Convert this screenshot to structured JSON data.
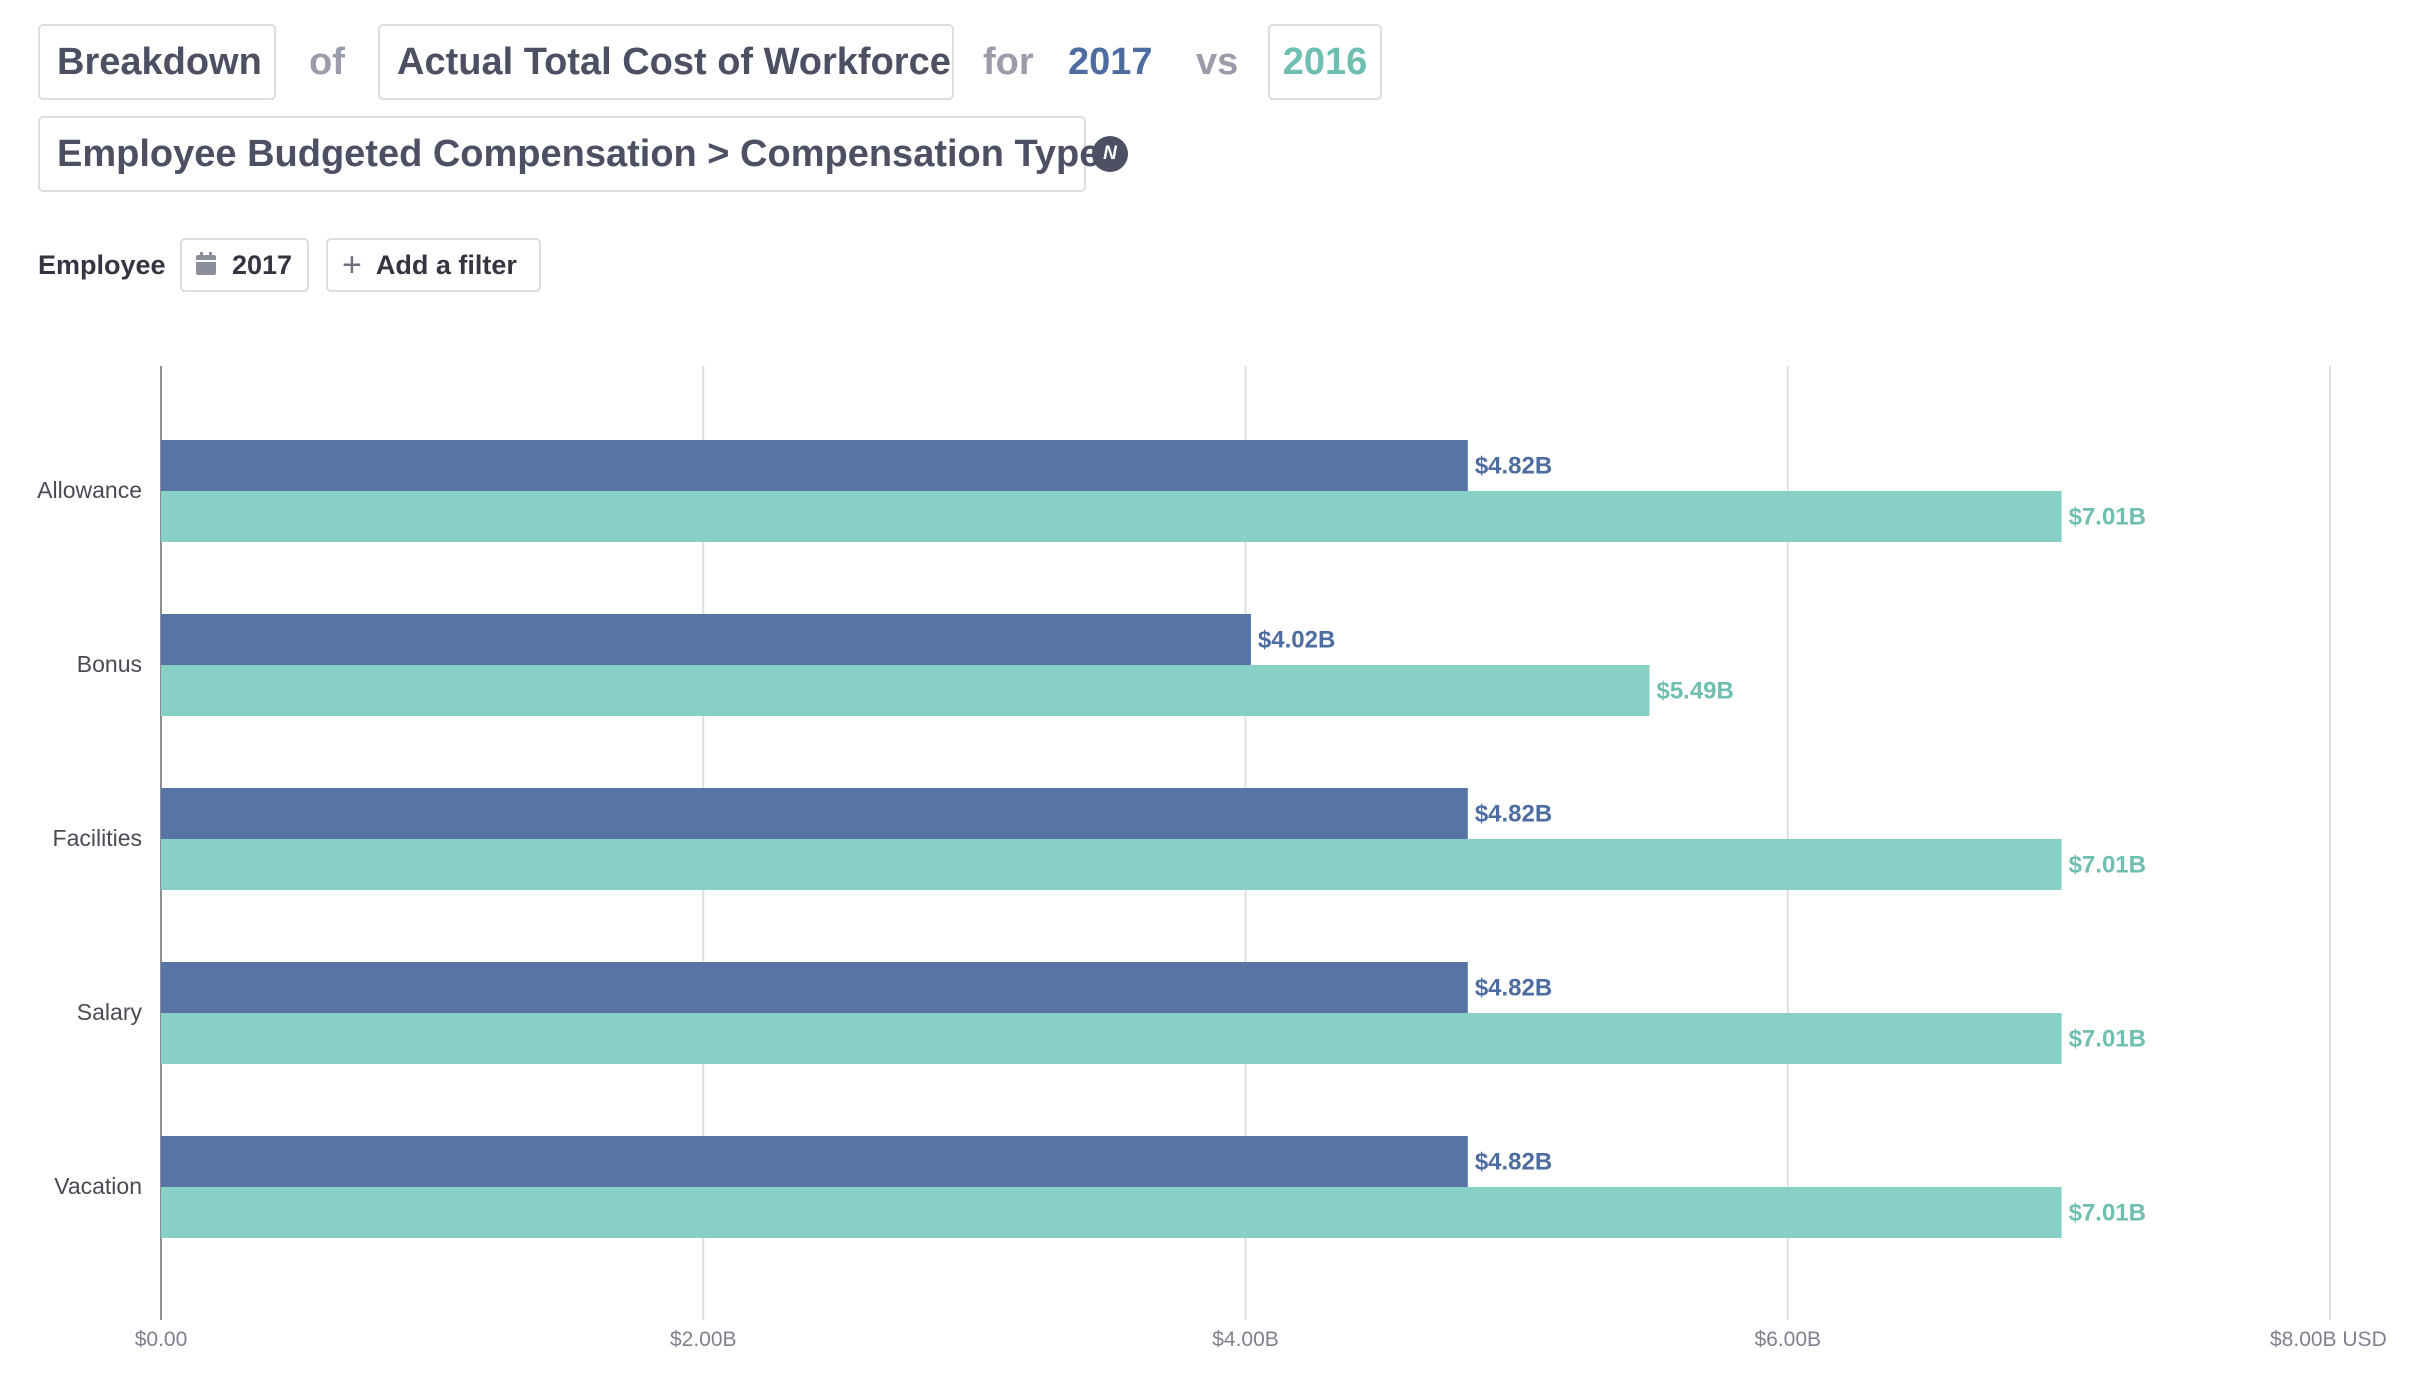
{
  "query": {
    "breakdown_label": "Breakdown",
    "of_word": "of",
    "metric_label": "Actual Total Cost of Workforce",
    "for_word": "for",
    "primary_year": "2017",
    "vs_word": "vs",
    "compare_year": "2016",
    "group_by_label": "Employee Budgeted Compensation > Compensation Type",
    "info_icon_glyph": "N"
  },
  "filters": {
    "label": "Employee",
    "year_chip": "2017",
    "add_filter": "Add a filter",
    "calendar_icon": "calendar-icon",
    "plus_icon": "plus-icon"
  },
  "colors": {
    "series_2017": "#5675a5",
    "series_2016": "#88cfc5",
    "text_2017": "#4d6c9f",
    "text_2016": "#6fbfb1"
  },
  "chart_data": {
    "type": "bar",
    "orientation": "horizontal",
    "categories": [
      "Allowance",
      "Bonus",
      "Facilities",
      "Salary",
      "Vacation"
    ],
    "series": [
      {
        "name": "2017",
        "values": [
          4.82,
          4.02,
          4.82,
          4.82,
          4.82
        ],
        "labels": [
          "$4.82B",
          "$4.02B",
          "$4.82B",
          "$4.82B",
          "$4.82B"
        ]
      },
      {
        "name": "2016",
        "values": [
          7.01,
          5.49,
          7.01,
          7.01,
          7.01
        ],
        "labels": [
          "$7.01B",
          "$5.49B",
          "$7.01B",
          "$7.01B",
          "$7.01B"
        ]
      }
    ],
    "x_ticks": [
      0,
      2,
      4,
      6,
      8
    ],
    "x_tick_labels": [
      "$0.00",
      "$2.00B",
      "$4.00B",
      "$6.00B",
      "$8.00B USD"
    ],
    "xlim": [
      0,
      8
    ],
    "unit": "USD billions",
    "grid": true,
    "legend": "none"
  }
}
